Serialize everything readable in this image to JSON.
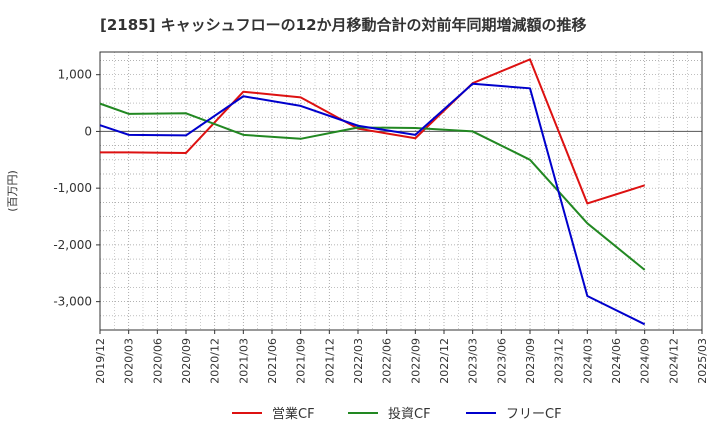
{
  "title": "[2185]  キャッシュフローの12か月移動合計の対前年同期増減額の推移",
  "chart_data": {
    "type": "line",
    "title": "[2185]  キャッシュフローの12か月移動合計の対前年同期増減額の推移",
    "ylabel": "(百万円)",
    "ylim": [
      -3500,
      1400
    ],
    "yticks": [
      1000,
      0,
      -1000,
      -2000,
      -3000
    ],
    "ytick_labels": [
      "1,000",
      "0",
      "-1,000",
      "-2,000",
      "-3,000"
    ],
    "x_labels": [
      "2019/12",
      "2020/03",
      "2020/06",
      "2020/09",
      "2020/12",
      "2021/03",
      "2021/06",
      "2021/09",
      "2021/12",
      "2022/03",
      "2022/06",
      "2022/09",
      "2022/12",
      "2023/03",
      "2023/06",
      "2023/09",
      "2023/12",
      "2024/03",
      "2024/06",
      "2024/09",
      "2024/12",
      "2025/03"
    ],
    "series": [
      {
        "name": "営業CF",
        "color": "#dd1111",
        "values": [
          -370,
          -370,
          null,
          -380,
          null,
          700,
          null,
          600,
          null,
          50,
          null,
          -120,
          null,
          850,
          null,
          1270,
          null,
          -1270,
          null,
          -950,
          null,
          null
        ]
      },
      {
        "name": "投資CF",
        "color": "#228822",
        "values": [
          490,
          310,
          null,
          320,
          null,
          -60,
          null,
          -130,
          null,
          70,
          null,
          60,
          null,
          0,
          null,
          -500,
          null,
          -1620,
          null,
          -2440,
          null,
          null
        ]
      },
      {
        "name": "フリーCF",
        "color": "#0000cc",
        "values": [
          110,
          -60,
          null,
          -70,
          null,
          620,
          null,
          450,
          null,
          100,
          null,
          -60,
          null,
          840,
          null,
          760,
          null,
          -2900,
          null,
          -3400,
          null,
          null
        ]
      }
    ],
    "legend": "bottom",
    "grid": true
  }
}
